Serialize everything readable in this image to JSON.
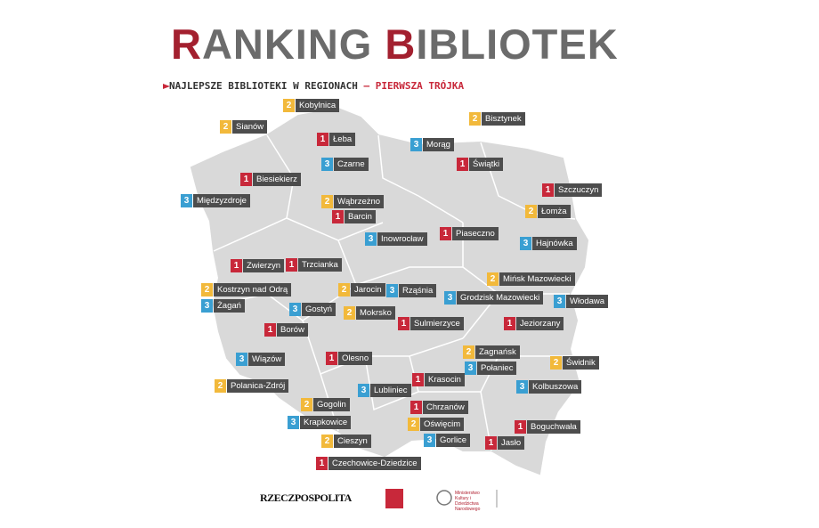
{
  "header": {
    "title": [
      {
        "text": "R",
        "accent": true
      },
      {
        "text": "ANKING ",
        "accent": false
      },
      {
        "text": "B",
        "accent": true
      },
      {
        "text": "IBLIOTEK",
        "accent": false
      }
    ],
    "subtitle": [
      {
        "text": "NAJLEPSZE BIBLIOTEKI W REGIONACH ",
        "accent": false
      },
      {
        "text": "– PIERWSZA TRÓJKA",
        "accent": true
      }
    ]
  },
  "rank_colors": {
    "1": "#c8283a",
    "2": "#f2b93b",
    "3": "#3a9fd2"
  },
  "labels": [
    {
      "rank": 2,
      "name": "Kobylnica"
    },
    {
      "rank": 2,
      "name": "Sianów"
    },
    {
      "rank": 1,
      "name": "Łeba"
    },
    {
      "rank": 2,
      "name": "Bisztynek"
    },
    {
      "rank": 3,
      "name": "Morąg"
    },
    {
      "rank": 1,
      "name": "Świątki"
    },
    {
      "rank": 3,
      "name": "Czarne"
    },
    {
      "rank": 1,
      "name": "Biesiekierz"
    },
    {
      "rank": 3,
      "name": "Międzyzdroje"
    },
    {
      "rank": 2,
      "name": "Wąbrzeżno"
    },
    {
      "rank": 1,
      "name": "Szczuczyn"
    },
    {
      "rank": 1,
      "name": "Barcin"
    },
    {
      "rank": 2,
      "name": "Łomża"
    },
    {
      "rank": 1,
      "name": "Piaseczno"
    },
    {
      "rank": 3,
      "name": "Inowrocław"
    },
    {
      "rank": 3,
      "name": "Hajnówka"
    },
    {
      "rank": 1,
      "name": "Zwierzyn"
    },
    {
      "rank": 1,
      "name": "Trzcianka"
    },
    {
      "rank": 2,
      "name": "Mińsk Mazowiecki"
    },
    {
      "rank": 2,
      "name": "Kostrzyn nad Odrą"
    },
    {
      "rank": 2,
      "name": "Jarocin"
    },
    {
      "rank": 3,
      "name": "Rząśnia"
    },
    {
      "rank": 3,
      "name": "Grodzisk Mazowiecki"
    },
    {
      "rank": 3,
      "name": "Włodawa"
    },
    {
      "rank": 3,
      "name": "Żagań"
    },
    {
      "rank": 3,
      "name": "Gostyń"
    },
    {
      "rank": 2,
      "name": "Mokrsko"
    },
    {
      "rank": 1,
      "name": "Sulmierzyce"
    },
    {
      "rank": 1,
      "name": "Jeziorzany"
    },
    {
      "rank": 1,
      "name": "Borów"
    },
    {
      "rank": 2,
      "name": "Zagnańsk"
    },
    {
      "rank": 3,
      "name": "Wiązów"
    },
    {
      "rank": 1,
      "name": "Olesno"
    },
    {
      "rank": 3,
      "name": "Połaniec"
    },
    {
      "rank": 2,
      "name": "Świdnik"
    },
    {
      "rank": 2,
      "name": "Polanica-Zdrój"
    },
    {
      "rank": 1,
      "name": "Krasocin"
    },
    {
      "rank": 3,
      "name": "Kolbuszowa"
    },
    {
      "rank": 3,
      "name": "Lubliniec"
    },
    {
      "rank": 2,
      "name": "Gogolin"
    },
    {
      "rank": 1,
      "name": "Chrzanów"
    },
    {
      "rank": 3,
      "name": "Krapkowice"
    },
    {
      "rank": 2,
      "name": "Oświęcim"
    },
    {
      "rank": 1,
      "name": "Boguchwała"
    },
    {
      "rank": 3,
      "name": "Gorlice"
    },
    {
      "rank": 2,
      "name": "Cieszyn"
    },
    {
      "rank": 1,
      "name": "Jasło"
    },
    {
      "rank": 1,
      "name": "Czechowice-Dziedzice"
    }
  ],
  "footer": {
    "logo_newspaper": "RZECZPOSPOLITA",
    "logo_ministry": "Ministerstwo Kultury i Dziedzictwa Narodowego"
  }
}
